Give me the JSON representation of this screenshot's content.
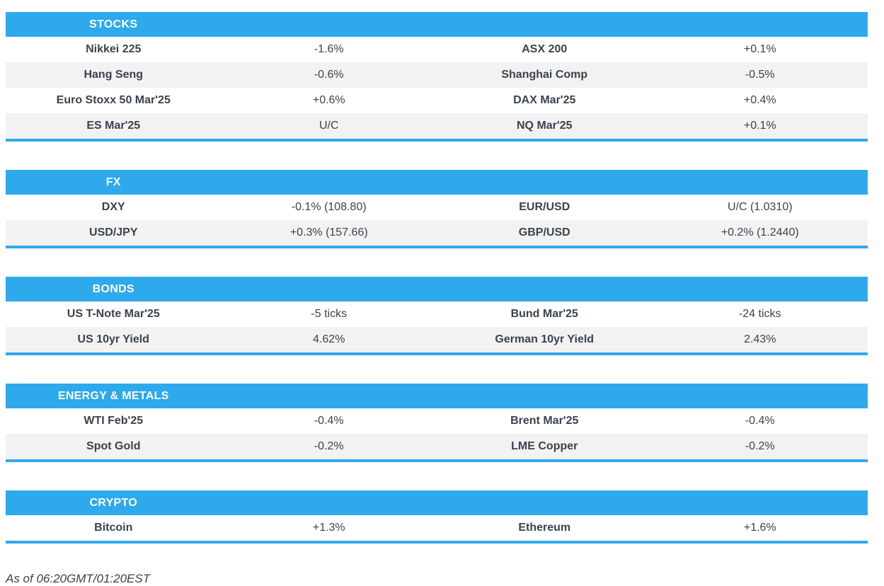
{
  "colors": {
    "accent_blue": "#2ea9ec",
    "row_alt_gray": "#f2f2f2",
    "text_dark": "#3a434e",
    "header_text": "#ffffff"
  },
  "footer": {
    "timestamp": "As of 06:20GMT/01:20EST"
  },
  "sections": [
    {
      "title": "STOCKS",
      "rows": [
        [
          "Nikkei 225",
          "-1.6%",
          "ASX 200",
          "+0.1%"
        ],
        [
          "Hang Seng",
          "-0.6%",
          "Shanghai Comp",
          "-0.5%"
        ],
        [
          "Euro Stoxx 50 Mar'25",
          "+0.6%",
          "DAX Mar'25",
          "+0.4%"
        ],
        [
          "ES Mar'25",
          "U/C",
          "NQ Mar'25",
          "+0.1%"
        ]
      ]
    },
    {
      "title": "FX",
      "rows": [
        [
          "DXY",
          "-0.1% (108.80)",
          "EUR/USD",
          "U/C (1.0310)"
        ],
        [
          "USD/JPY",
          "+0.3% (157.66)",
          "GBP/USD",
          "+0.2% (1.2440)"
        ]
      ]
    },
    {
      "title": "BONDS",
      "rows": [
        [
          "US T-Note Mar'25",
          "-5 ticks",
          "Bund Mar'25",
          "-24 ticks"
        ],
        [
          "US 10yr Yield",
          "4.62%",
          "German 10yr Yield",
          "2.43%"
        ]
      ]
    },
    {
      "title": "ENERGY & METALS",
      "rows": [
        [
          "WTI Feb'25",
          "-0.4%",
          "Brent Mar'25",
          "-0.4%"
        ],
        [
          "Spot Gold",
          "-0.2%",
          "LME Copper",
          "-0.2%"
        ]
      ]
    },
    {
      "title": "CRYPTO",
      "rows": [
        [
          "Bitcoin",
          "+1.3%",
          "Ethereum",
          "+1.6%"
        ]
      ]
    }
  ]
}
